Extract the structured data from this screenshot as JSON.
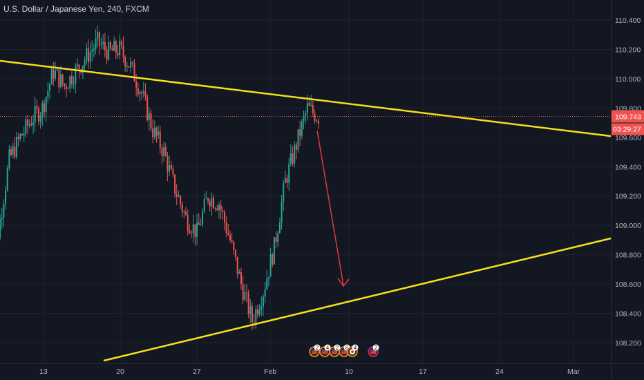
{
  "header": {
    "symbol_label": "U.S. Dollar / Japanese Yen, 240, FXCM"
  },
  "colors": {
    "background": "#131722",
    "grid": "#1f2330",
    "up": "#26a69a",
    "down": "#ef5350",
    "trendline": "#f5e11b",
    "projection_arrow": "#e53935",
    "price_tag": "#ef5350"
  },
  "chart_data": {
    "type": "candlestick",
    "title": "U.S. Dollar / Japanese Yen, 240, FXCM",
    "x_ticks": [
      "13",
      "20",
      "27",
      "Feb",
      "10",
      "17",
      "24",
      "Mar"
    ],
    "y_ticks": [
      "110.400",
      "110.200",
      "110.000",
      "109.800",
      "109.600",
      "109.400",
      "109.200",
      "109.000",
      "108.800",
      "108.600",
      "108.400",
      "108.200"
    ],
    "ylim": [
      108.08,
      110.52
    ],
    "grid": true,
    "last_price": "109.743",
    "countdown": "03:29:27",
    "path_points": [
      [
        "Jan 8",
        108.3
      ],
      [
        "Jan 9",
        108.95
      ],
      [
        "Jan 10",
        109.45
      ],
      [
        "Jan 11",
        109.6
      ],
      [
        "Jan 12",
        109.72
      ],
      [
        "Jan 13",
        109.8
      ],
      [
        "Jan 14",
        110.05
      ],
      [
        "Jan 15",
        109.95
      ],
      [
        "Jan 16",
        110.05
      ],
      [
        "Jan 17",
        110.15
      ],
      [
        "Jan 18",
        110.25
      ],
      [
        "Jan 19",
        110.18
      ],
      [
        "Jan 20",
        110.2
      ],
      [
        "Jan 21",
        110.08
      ],
      [
        "Jan 22",
        109.9
      ],
      [
        "Jan 23",
        109.65
      ],
      [
        "Jan 24",
        109.5
      ],
      [
        "Jan 25",
        109.25
      ],
      [
        "Jan 26",
        109.05
      ],
      [
        "Jan 27",
        108.95
      ],
      [
        "Jan 28",
        109.2
      ],
      [
        "Jan 29",
        109.15
      ],
      [
        "Jan 30",
        108.9
      ],
      [
        "Jan 31",
        108.6
      ],
      [
        "Feb 1",
        108.35
      ],
      [
        "Feb 2",
        108.55
      ],
      [
        "Feb 3",
        108.85
      ],
      [
        "Feb 4",
        109.3
      ],
      [
        "Feb 5",
        109.55
      ],
      [
        "Feb 6",
        109.8
      ],
      [
        "Feb 7",
        109.74
      ]
    ],
    "annotations": {
      "upper_trendline": [
        [
          "Jan 5",
          110.12
        ],
        [
          "Mar 5",
          109.6
        ]
      ],
      "lower_trendline": [
        [
          "Jan 18",
          108.05
        ],
        [
          "Mar 5",
          108.91
        ]
      ],
      "projection_arrow": [
        [
          "Feb 7",
          109.65
        ],
        [
          "Feb 10",
          108.58
        ]
      ]
    },
    "event_markers": [
      {
        "flag": "US",
        "count": "2"
      },
      {
        "flag": "US",
        "count": "4"
      },
      {
        "flag": "US",
        "count": "2"
      },
      {
        "flag": "US",
        "count": "6"
      },
      {
        "flag": "JP",
        "count": "4"
      },
      {
        "flag": "US",
        "count": "2"
      }
    ]
  }
}
